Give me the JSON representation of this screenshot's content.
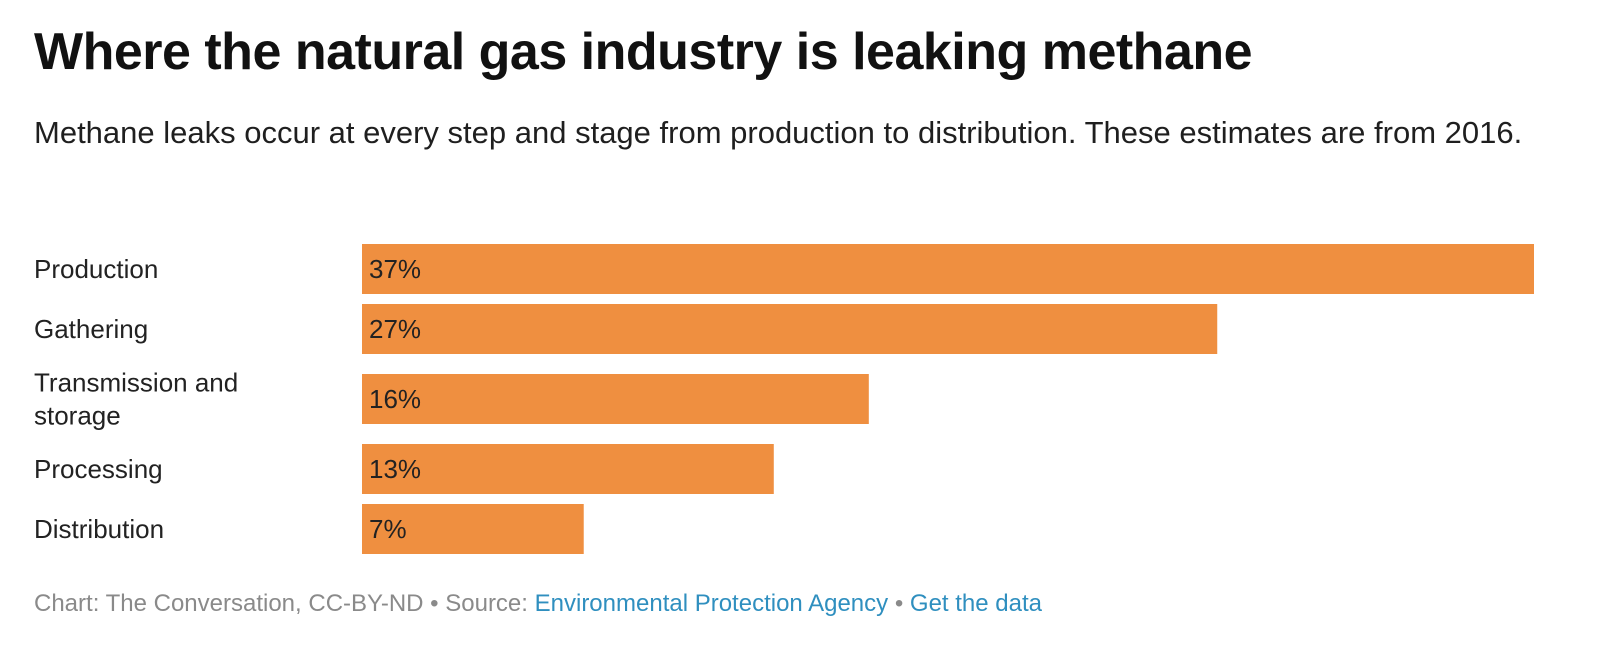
{
  "chart_data": {
    "type": "bar",
    "orientation": "horizontal",
    "title": "Where the natural gas industry is leaking methane",
    "subtitle": "Methane leaks occur at every step and stage from production to distribution. These estimates are from 2016.",
    "categories": [
      "Production",
      "Gathering",
      "Transmission and storage",
      "Processing",
      "Distribution"
    ],
    "category_lines": [
      [
        "Production"
      ],
      [
        "Gathering"
      ],
      [
        "Transmission and",
        "storage"
      ],
      [
        "Processing"
      ],
      [
        "Distribution"
      ]
    ],
    "values": [
      37,
      27,
      16,
      13,
      7
    ],
    "value_labels": [
      "37%",
      "27%",
      "16%",
      "13%",
      "7%"
    ],
    "unit": "%",
    "xlim": [
      0,
      37
    ],
    "bar_color": "#ef8f40",
    "grid": false,
    "legend": "none"
  },
  "footer": {
    "credit": "Chart: The Conversation, CC-BY-ND",
    "separator": " • ",
    "source_prefix": "Source: ",
    "source_link": "Environmental Protection Agency",
    "data_link": "Get the data",
    "link_color": "#2f8fbf"
  }
}
